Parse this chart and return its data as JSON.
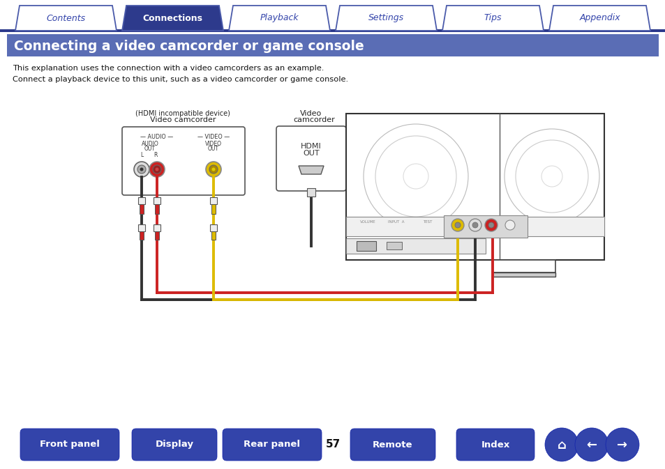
{
  "bg_color": "#ffffff",
  "tab_color_active": "#2d3a8c",
  "tab_color_inactive": "#ffffff",
  "tab_border_color": "#4a5aaa",
  "tab_text_active": "#ffffff",
  "tab_text_inactive": "#3344aa",
  "tabs": [
    "Contents",
    "Connections",
    "Playback",
    "Settings",
    "Tips",
    "Appendix"
  ],
  "active_tab": 1,
  "tab_line_color": "#2d3a8c",
  "title_bg": "#5a6db5",
  "title_text": "Connecting a video camcorder or game console",
  "title_text_color": "#ffffff",
  "body_text_1": "This explanation uses the connection with a video camcorders as an example.",
  "body_text_2": "Connect a playback device to this unit, such as a video camcorder or game console.",
  "page_number": "57",
  "bottom_buttons": [
    "Front panel",
    "Display",
    "Rear panel",
    "Remote",
    "Index"
  ],
  "button_color": "#3344aa",
  "button_text_color": "#ffffff",
  "line_color": "#333333",
  "device_border": "#555555",
  "unit_line": "#444444"
}
